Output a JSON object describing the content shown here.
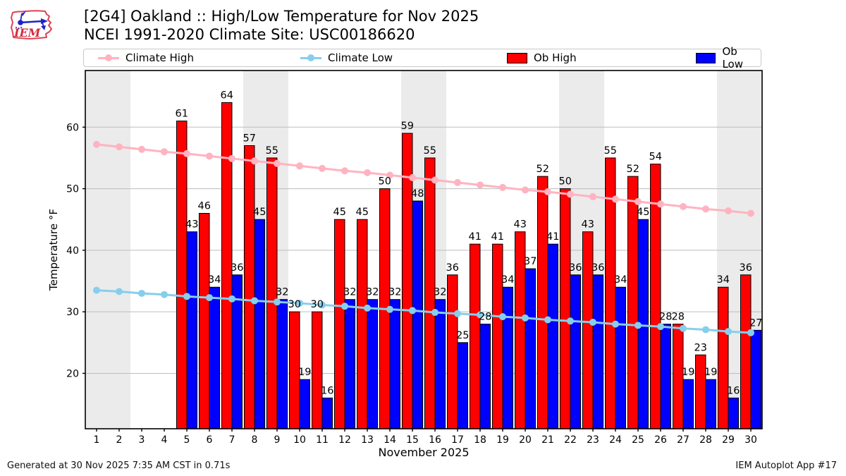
{
  "header": {
    "title_line1": "[2G4] Oakland :: High/Low Temperature for Nov 2025",
    "title_line2": "NCEI 1991-2020 Climate Site: USC00186620"
  },
  "legend": {
    "items": [
      {
        "label": "Climate High",
        "color": "#ffb3c1",
        "marker": "line-dot"
      },
      {
        "label": "Climate Low",
        "color": "#87ceeb",
        "marker": "line-dot"
      },
      {
        "label": "Ob High",
        "color": "#ff0000",
        "marker": "patch"
      },
      {
        "label": "Ob Low",
        "color": "#0000ff",
        "marker": "patch"
      }
    ]
  },
  "footer": {
    "generated": "Generated at 30 Nov 2025 7:35 AM CST in 0.71s",
    "app": "IEM Autoplot App #17"
  },
  "chart_data": {
    "type": "bar",
    "title": "[2G4] Oakland :: High/Low Temperature for Nov 2025",
    "subtitle": "NCEI 1991-2020 Climate Site: USC00186620",
    "xlabel": "November 2025",
    "ylabel": "Temperature °F",
    "x": [
      1,
      2,
      3,
      4,
      5,
      6,
      7,
      8,
      9,
      10,
      11,
      12,
      13,
      14,
      15,
      16,
      17,
      18,
      19,
      20,
      21,
      22,
      23,
      24,
      25,
      26,
      27,
      28,
      29,
      30
    ],
    "yticks": [
      20,
      30,
      40,
      50,
      60
    ],
    "ylim": [
      11,
      69.2
    ],
    "grid": true,
    "legend_position": "top",
    "weekend_shading_color": "#ebebeb",
    "weekend_bands": [
      [
        1,
        2
      ],
      [
        8,
        9
      ],
      [
        15,
        16
      ],
      [
        22,
        23
      ],
      [
        29,
        30
      ]
    ],
    "series": [
      {
        "name": "Climate High",
        "type": "line",
        "color": "#ffb3c1",
        "values": [
          57.2,
          56.8,
          56.4,
          56.0,
          55.7,
          55.3,
          54.9,
          54.5,
          54.1,
          53.7,
          53.3,
          52.9,
          52.6,
          52.2,
          51.8,
          51.4,
          51.0,
          50.6,
          50.2,
          49.8,
          49.5,
          49.1,
          48.7,
          48.3,
          47.9,
          47.5,
          47.1,
          46.7,
          46.4,
          46.0
        ]
      },
      {
        "name": "Climate Low",
        "type": "line",
        "color": "#87ceeb",
        "values": [
          33.5,
          33.3,
          33.0,
          32.8,
          32.5,
          32.3,
          32.1,
          31.8,
          31.6,
          31.4,
          31.1,
          30.9,
          30.6,
          30.4,
          30.2,
          29.9,
          29.7,
          29.5,
          29.2,
          29.0,
          28.7,
          28.5,
          28.3,
          28.0,
          27.8,
          27.6,
          27.3,
          27.1,
          26.8,
          26.6
        ]
      },
      {
        "name": "Ob High",
        "type": "bar",
        "color": "#ff0000",
        "values": [
          null,
          null,
          null,
          null,
          61,
          46,
          64,
          57,
          55,
          30,
          30,
          45,
          45,
          50,
          59,
          55,
          36,
          41,
          41,
          43,
          52,
          50,
          43,
          55,
          52,
          54,
          28,
          23,
          34,
          36
        ]
      },
      {
        "name": "Ob Low",
        "type": "bar",
        "color": "#0000ff",
        "values": [
          null,
          null,
          null,
          null,
          43,
          34,
          36,
          45,
          32,
          19,
          16,
          32,
          32,
          32,
          48,
          32,
          25,
          28,
          34,
          37,
          41,
          36,
          36,
          34,
          45,
          28,
          19,
          19,
          16,
          27
        ]
      }
    ]
  }
}
